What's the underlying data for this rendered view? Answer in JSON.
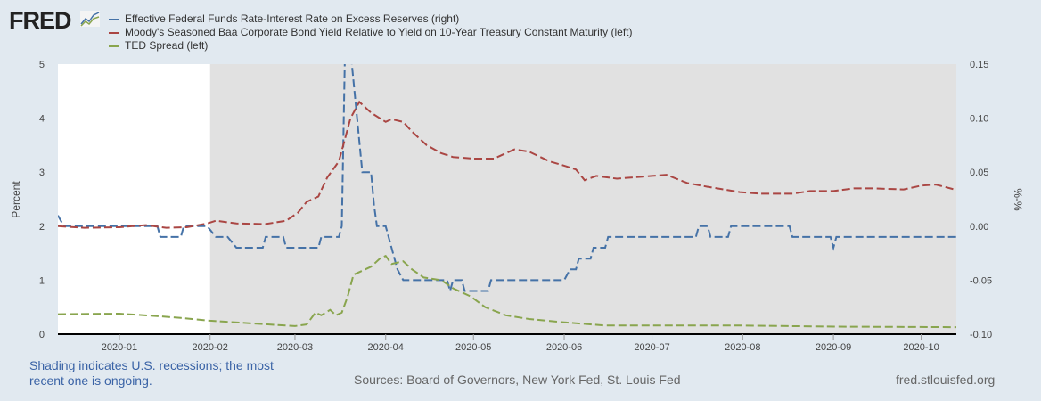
{
  "logo": "FRED",
  "chart_data": {
    "type": "line",
    "title": "",
    "ylabel": "Percent",
    "y2label": "%-%",
    "ylim": [
      0,
      5
    ],
    "y2lim": [
      -0.1,
      0.15
    ],
    "yticks": [
      "0",
      "1",
      "2",
      "3",
      "4",
      "5"
    ],
    "y2ticks": [
      "-0.10",
      "-0.05",
      "0.00",
      "0.05",
      "0.10",
      "0.15"
    ],
    "xlim": [
      "2019-12-11",
      "2020-10-13"
    ],
    "xticks": [
      [
        "2020-01-01",
        "2020-01"
      ],
      [
        "2020-02-01",
        "2020-02"
      ],
      [
        "2020-03-01",
        "2020-03"
      ],
      [
        "2020-04-01",
        "2020-04"
      ],
      [
        "2020-05-01",
        "2020-05"
      ],
      [
        "2020-06-01",
        "2020-06"
      ],
      [
        "2020-07-01",
        "2020-07"
      ],
      [
        "2020-08-01",
        "2020-08"
      ],
      [
        "2020-09-01",
        "2020-09"
      ],
      [
        "2020-10-01",
        "2020-10"
      ]
    ],
    "recession": [
      "2020-02-01",
      "2020-10-13"
    ],
    "legend_position": "top",
    "series": [
      {
        "name": "Effective Federal Funds Rate-Interest Rate on Excess Reserves (right)",
        "axis": "right",
        "color": "#4572a7",
        "points": [
          [
            "2019-12-11",
            0.01
          ],
          [
            "2019-12-13",
            0.0
          ],
          [
            "2020-01-14",
            0.0
          ],
          [
            "2020-01-15",
            -0.01
          ],
          [
            "2020-01-22",
            -0.01
          ],
          [
            "2020-01-23",
            0.0
          ],
          [
            "2020-01-31",
            0.0
          ],
          [
            "2020-02-03",
            -0.01
          ],
          [
            "2020-02-07",
            -0.01
          ],
          [
            "2020-02-10",
            -0.02
          ],
          [
            "2020-02-19",
            -0.02
          ],
          [
            "2020-02-20",
            -0.01
          ],
          [
            "2020-02-26",
            -0.01
          ],
          [
            "2020-02-27",
            -0.02
          ],
          [
            "2020-03-09",
            -0.02
          ],
          [
            "2020-03-10",
            -0.01
          ],
          [
            "2020-03-16",
            -0.01
          ],
          [
            "2020-03-17",
            0.0
          ],
          [
            "2020-03-18",
            0.15
          ],
          [
            "2020-03-19",
            0.19
          ],
          [
            "2020-03-24",
            0.05
          ],
          [
            "2020-03-27",
            0.05
          ],
          [
            "2020-03-28",
            0.02
          ],
          [
            "2020-03-29",
            0.0
          ],
          [
            "2020-04-01",
            0.0
          ],
          [
            "2020-04-03",
            -0.02
          ],
          [
            "2020-04-05",
            -0.04
          ],
          [
            "2020-04-07",
            -0.05
          ],
          [
            "2020-04-22",
            -0.05
          ],
          [
            "2020-04-23",
            -0.06
          ],
          [
            "2020-04-24",
            -0.05
          ],
          [
            "2020-04-27",
            -0.05
          ],
          [
            "2020-04-28",
            -0.06
          ],
          [
            "2020-05-06",
            -0.06
          ],
          [
            "2020-05-07",
            -0.05
          ],
          [
            "2020-06-01",
            -0.05
          ],
          [
            "2020-06-03",
            -0.04
          ],
          [
            "2020-06-05",
            -0.04
          ],
          [
            "2020-06-06",
            -0.03
          ],
          [
            "2020-06-10",
            -0.03
          ],
          [
            "2020-06-11",
            -0.02
          ],
          [
            "2020-06-15",
            -0.02
          ],
          [
            "2020-06-16",
            -0.01
          ],
          [
            "2020-07-16",
            -0.01
          ],
          [
            "2020-07-17",
            0.0
          ],
          [
            "2020-07-20",
            0.0
          ],
          [
            "2020-07-21",
            -0.01
          ],
          [
            "2020-07-27",
            -0.01
          ],
          [
            "2020-07-28",
            0.0
          ],
          [
            "2020-08-17",
            0.0
          ],
          [
            "2020-08-18",
            -0.01
          ],
          [
            "2020-08-31",
            -0.01
          ],
          [
            "2020-09-01",
            -0.02
          ],
          [
            "2020-09-02",
            -0.01
          ],
          [
            "2020-10-13",
            -0.01
          ]
        ]
      },
      {
        "name": "Moody's Seasoned Baa Corporate Bond Yield Relative to Yield on 10-Year Treasury Constant Maturity (left)",
        "axis": "left",
        "color": "#aa4643",
        "points": [
          [
            "2019-12-11",
            2.0
          ],
          [
            "2019-12-20",
            1.97
          ],
          [
            "2020-01-01",
            1.98
          ],
          [
            "2020-01-10",
            2.02
          ],
          [
            "2020-01-17",
            1.97
          ],
          [
            "2020-01-24",
            1.98
          ],
          [
            "2020-01-31",
            2.05
          ],
          [
            "2020-02-03",
            2.1
          ],
          [
            "2020-02-10",
            2.05
          ],
          [
            "2020-02-20",
            2.04
          ],
          [
            "2020-02-27",
            2.1
          ],
          [
            "2020-03-02",
            2.25
          ],
          [
            "2020-03-05",
            2.45
          ],
          [
            "2020-03-09",
            2.55
          ],
          [
            "2020-03-12",
            2.9
          ],
          [
            "2020-03-16",
            3.2
          ],
          [
            "2020-03-18",
            3.6
          ],
          [
            "2020-03-20",
            4.0
          ],
          [
            "2020-03-23",
            4.3
          ],
          [
            "2020-03-27",
            4.1
          ],
          [
            "2020-04-01",
            3.93
          ],
          [
            "2020-04-03",
            3.98
          ],
          [
            "2020-04-07",
            3.93
          ],
          [
            "2020-04-10",
            3.75
          ],
          [
            "2020-04-15",
            3.5
          ],
          [
            "2020-04-20",
            3.35
          ],
          [
            "2020-04-24",
            3.28
          ],
          [
            "2020-05-01",
            3.25
          ],
          [
            "2020-05-08",
            3.25
          ],
          [
            "2020-05-12",
            3.35
          ],
          [
            "2020-05-15",
            3.42
          ],
          [
            "2020-05-20",
            3.38
          ],
          [
            "2020-05-27",
            3.2
          ],
          [
            "2020-06-01",
            3.12
          ],
          [
            "2020-06-05",
            3.05
          ],
          [
            "2020-06-08",
            2.85
          ],
          [
            "2020-06-12",
            2.93
          ],
          [
            "2020-06-19",
            2.88
          ],
          [
            "2020-07-01",
            2.93
          ],
          [
            "2020-07-06",
            2.95
          ],
          [
            "2020-07-13",
            2.8
          ],
          [
            "2020-07-20",
            2.73
          ],
          [
            "2020-07-31",
            2.63
          ],
          [
            "2020-08-07",
            2.6
          ],
          [
            "2020-08-18",
            2.6
          ],
          [
            "2020-08-24",
            2.65
          ],
          [
            "2020-09-01",
            2.65
          ],
          [
            "2020-09-08",
            2.7
          ],
          [
            "2020-09-15",
            2.7
          ],
          [
            "2020-09-25",
            2.68
          ],
          [
            "2020-10-01",
            2.75
          ],
          [
            "2020-10-06",
            2.77
          ],
          [
            "2020-10-13",
            2.67
          ]
        ]
      },
      {
        "name": "TED Spread (left)",
        "axis": "left",
        "color": "#89a54e",
        "points": [
          [
            "2019-12-11",
            0.37
          ],
          [
            "2020-01-01",
            0.38
          ],
          [
            "2020-01-15",
            0.33
          ],
          [
            "2020-01-22",
            0.3
          ],
          [
            "2020-02-01",
            0.25
          ],
          [
            "2020-02-15",
            0.2
          ],
          [
            "2020-03-01",
            0.15
          ],
          [
            "2020-03-05",
            0.18
          ],
          [
            "2020-03-08",
            0.4
          ],
          [
            "2020-03-10",
            0.35
          ],
          [
            "2020-03-13",
            0.45
          ],
          [
            "2020-03-15",
            0.35
          ],
          [
            "2020-03-17",
            0.4
          ],
          [
            "2020-03-19",
            0.7
          ],
          [
            "2020-03-21",
            1.1
          ],
          [
            "2020-03-23",
            1.15
          ],
          [
            "2020-03-27",
            1.25
          ],
          [
            "2020-03-30",
            1.4
          ],
          [
            "2020-04-01",
            1.45
          ],
          [
            "2020-04-03",
            1.3
          ],
          [
            "2020-04-07",
            1.35
          ],
          [
            "2020-04-10",
            1.2
          ],
          [
            "2020-04-14",
            1.05
          ],
          [
            "2020-04-20",
            1.0
          ],
          [
            "2020-04-24",
            0.85
          ],
          [
            "2020-04-30",
            0.7
          ],
          [
            "2020-05-05",
            0.5
          ],
          [
            "2020-05-12",
            0.35
          ],
          [
            "2020-05-20",
            0.28
          ],
          [
            "2020-06-01",
            0.22
          ],
          [
            "2020-06-15",
            0.16
          ],
          [
            "2020-07-01",
            0.16
          ],
          [
            "2020-08-01",
            0.16
          ],
          [
            "2020-09-01",
            0.14
          ],
          [
            "2020-10-13",
            0.13
          ]
        ]
      }
    ]
  },
  "footer": {
    "note": "Shading indicates U.S. recessions; the most recent one is ongoing.",
    "sources": "Sources: Board of Governors, New York Fed, St. Louis Fed",
    "url": "fred.stlouisfed.org"
  }
}
